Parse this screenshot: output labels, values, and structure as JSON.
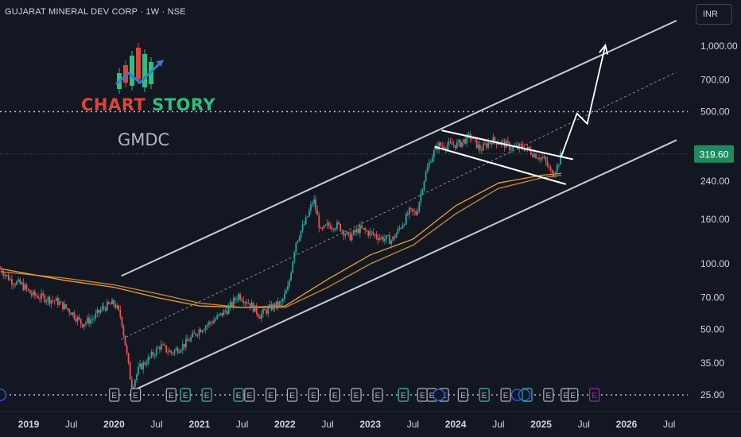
{
  "header": {
    "symbol": "GUJARAT MINERAL DEV CORP · 1W · NSE"
  },
  "currency": "INR",
  "logo": {
    "word1": "CHART",
    "word2": "STORY"
  },
  "ticker_label": "GMDC",
  "colors": {
    "background": "#131722",
    "up": "#26a69a",
    "down": "#ef5350",
    "ema": "#f0a030",
    "channel": "#c9ccd3",
    "price_badge": "#1e8a5e"
  },
  "chart_data": {
    "type": "candlestick",
    "title": "GUJARAT MINERAL DEV CORP · 1W · NSE",
    "y_scale": "log",
    "currency": "INR",
    "y_ticks": [
      25,
      35,
      50,
      70,
      100,
      160,
      240,
      500,
      700,
      1000
    ],
    "y_tick_labels": [
      "25.00",
      "35.00",
      "50.00",
      "70.00",
      "100.00",
      "160.00",
      "240.00",
      "500.00",
      "700.00",
      "1,000.00"
    ],
    "x_tick_labels": [
      "2019",
      "Jul",
      "2020",
      "Jul",
      "2021",
      "Jul",
      "2022",
      "Jul",
      "2023",
      "Jul",
      "2024",
      "Jul",
      "2025",
      "Jul",
      "2026",
      "Jul"
    ],
    "x_range": [
      "2018-09",
      "2026-10"
    ],
    "y_range": [
      22,
      1400
    ],
    "last_price": 319.6,
    "last_price_label": "319.60",
    "price_path": [
      [
        "2018-09-01",
        95
      ],
      [
        "2018-10-15",
        84
      ],
      [
        "2018-12-01",
        80
      ],
      [
        "2019-01-15",
        72
      ],
      [
        "2019-03-01",
        70
      ],
      [
        "2019-05-01",
        67
      ],
      [
        "2019-07-01",
        60
      ],
      [
        "2019-08-15",
        53
      ],
      [
        "2019-10-01",
        56
      ],
      [
        "2019-11-15",
        63
      ],
      [
        "2020-01-01",
        66
      ],
      [
        "2020-02-01",
        56
      ],
      [
        "2020-03-15",
        27
      ],
      [
        "2020-04-15",
        33
      ],
      [
        "2020-06-01",
        37
      ],
      [
        "2020-07-15",
        42
      ],
      [
        "2020-09-01",
        39
      ],
      [
        "2020-11-01",
        43
      ],
      [
        "2021-01-01",
        50
      ],
      [
        "2021-03-01",
        55
      ],
      [
        "2021-05-01",
        62
      ],
      [
        "2021-06-15",
        72
      ],
      [
        "2021-08-01",
        66
      ],
      [
        "2021-09-15",
        58
      ],
      [
        "2021-11-01",
        63
      ],
      [
        "2021-12-15",
        66
      ],
      [
        "2022-01-15",
        78
      ],
      [
        "2022-02-15",
        125
      ],
      [
        "2022-04-01",
        160
      ],
      [
        "2022-05-01",
        198
      ],
      [
        "2022-06-01",
        140
      ],
      [
        "2022-07-01",
        150
      ],
      [
        "2022-08-15",
        150
      ],
      [
        "2022-10-01",
        132
      ],
      [
        "2022-11-15",
        145
      ],
      [
        "2023-01-01",
        138
      ],
      [
        "2023-02-15",
        132
      ],
      [
        "2023-04-01",
        128
      ],
      [
        "2023-05-15",
        152
      ],
      [
        "2023-06-15",
        173
      ],
      [
        "2023-07-15",
        170
      ],
      [
        "2023-08-15",
        240
      ],
      [
        "2023-09-15",
        305
      ],
      [
        "2023-10-15",
        350
      ],
      [
        "2023-12-01",
        350
      ],
      [
        "2024-01-15",
        355
      ],
      [
        "2024-03-01",
        385
      ],
      [
        "2024-04-15",
        335
      ],
      [
        "2024-06-01",
        370
      ],
      [
        "2024-07-15",
        360
      ],
      [
        "2024-09-01",
        340
      ],
      [
        "2024-10-15",
        345
      ],
      [
        "2024-12-01",
        320
      ],
      [
        "2025-01-15",
        300
      ],
      [
        "2025-02-15",
        258
      ],
      [
        "2025-03-10",
        282
      ],
      [
        "2025-03-25",
        319.6
      ]
    ],
    "ema_fast": [
      [
        "2018-09-01",
        95
      ],
      [
        "2019-06-01",
        84
      ],
      [
        "2020-01-01",
        78
      ],
      [
        "2020-07-01",
        70
      ],
      [
        "2021-01-01",
        64
      ],
      [
        "2021-07-01",
        63
      ],
      [
        "2022-01-01",
        64
      ],
      [
        "2022-07-01",
        85
      ],
      [
        "2023-01-01",
        110
      ],
      [
        "2023-07-01",
        130
      ],
      [
        "2024-01-01",
        185
      ],
      [
        "2024-07-01",
        235
      ],
      [
        "2025-01-01",
        255
      ],
      [
        "2025-03-25",
        260
      ]
    ],
    "ema_slow": [
      [
        "2018-09-01",
        92
      ],
      [
        "2019-06-01",
        86
      ],
      [
        "2020-01-01",
        80
      ],
      [
        "2020-07-01",
        73
      ],
      [
        "2021-01-01",
        66
      ],
      [
        "2021-07-01",
        63
      ],
      [
        "2022-01-01",
        63
      ],
      [
        "2022-07-01",
        78
      ],
      [
        "2023-01-01",
        100
      ],
      [
        "2023-07-01",
        122
      ],
      [
        "2024-01-01",
        170
      ],
      [
        "2024-07-01",
        222
      ],
      [
        "2025-01-01",
        248
      ],
      [
        "2025-03-25",
        255
      ]
    ],
    "channel_upper": [
      [
        "2020-02-01",
        88
      ],
      [
        "2026-08-01",
        1310
      ]
    ],
    "channel_mid": [
      [
        "2020-02-01",
        45
      ],
      [
        "2026-08-01",
        760
      ]
    ],
    "channel_lower": [
      [
        "2020-03-15",
        26
      ],
      [
        "2026-08-01",
        370
      ]
    ],
    "flag_upper": [
      [
        "2023-11-01",
        410
      ],
      [
        "2025-05-15",
        302
      ]
    ],
    "flag_lower": [
      [
        "2023-10-01",
        345
      ],
      [
        "2025-04-15",
        232
      ]
    ],
    "projection": [
      [
        "2025-03-25",
        310
      ],
      [
        "2025-06-01",
        490
      ],
      [
        "2025-07-15",
        440
      ],
      [
        "2025-10-01",
        1010
      ]
    ],
    "resistance_level": 500,
    "support_level": 25,
    "current_level": 319.6,
    "earnings_markers": {
      "label": "E",
      "dates": [
        "2020-01-01",
        "2020-04-01",
        "2020-09-01",
        "2020-11-01",
        "2021-02-01",
        "2021-06-15",
        "2021-08-01",
        "2021-11-01",
        "2022-02-01",
        "2022-05-01",
        "2022-08-01",
        "2022-11-01",
        "2023-02-01",
        "2023-05-20",
        "2023-08-10",
        "2023-09-20",
        "2023-11-10",
        "2024-02-01",
        "2024-05-01",
        "2024-08-01",
        "2024-11-01",
        "2025-02-01",
        "2025-04-15",
        "2025-05-15"
      ],
      "dividend_dates": [
        "2018-09-01",
        "2023-10-20",
        "2024-09-20",
        "2024-10-20"
      ],
      "future_date": "2025-08-15"
    }
  }
}
